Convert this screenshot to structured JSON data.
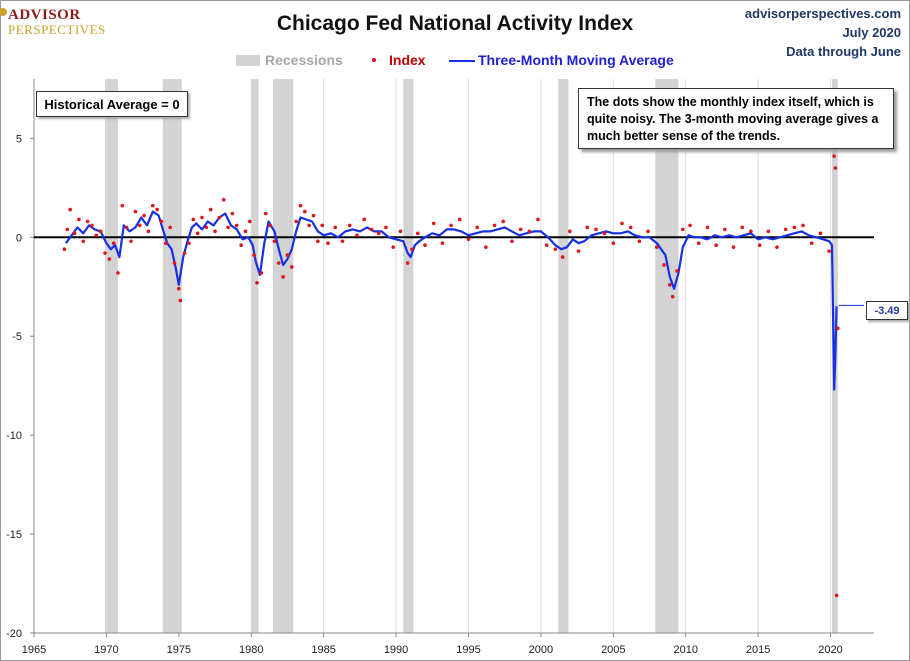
{
  "logo": {
    "line1": "ADVISOR",
    "line2": "PERSPECTIVES"
  },
  "header": {
    "title": "Chicago Fed National Activity Index",
    "site": "advisorperspectives.com",
    "date": "July 2020",
    "through": "Data through June"
  },
  "legend": {
    "recessions": "Recessions",
    "index": "Index",
    "ma": "Three-Month Moving Average"
  },
  "annotations": {
    "historical_average": "Historical Average = 0",
    "note": "The dots show the monthly  index itself, which is quite noisy. The 3-month moving average gives a much better sense of the trends.",
    "last_value": "-3.49"
  },
  "colors": {
    "index": "#e0141b",
    "ma": "#1630e6",
    "recession": "#d3d3d3",
    "zero": "#000000",
    "legend_recession_text": "#a6a6a6",
    "legend_index_text": "#c00000",
    "legend_ma_text": "#1f1fd6"
  },
  "chart_data": {
    "type": "line",
    "title": "Chicago Fed National Activity Index",
    "xlim": [
      1965,
      2023
    ],
    "ylim": [
      -20,
      8
    ],
    "xticks": [
      1965,
      1970,
      1975,
      1980,
      1985,
      1990,
      1995,
      2000,
      2005,
      2010,
      2015,
      2020
    ],
    "yticks": [
      5,
      0,
      -5,
      -10,
      -15,
      -20
    ],
    "grid": "vertical",
    "legend": "top",
    "recessions": [
      [
        1969.9,
        1970.8
      ],
      [
        1973.9,
        1975.2
      ],
      [
        1980.0,
        1980.5
      ],
      [
        1981.5,
        1982.9
      ],
      [
        1990.5,
        1991.2
      ],
      [
        2001.2,
        2001.9
      ],
      [
        2007.9,
        2009.5
      ],
      [
        2020.1,
        2020.5
      ]
    ],
    "series": [
      {
        "name": "Three-Month Moving Average",
        "style": "line",
        "x": [
          1967.2,
          1967.6,
          1968.0,
          1968.4,
          1968.8,
          1969.2,
          1969.6,
          1970.0,
          1970.3,
          1970.6,
          1970.9,
          1971.2,
          1971.6,
          1972.0,
          1972.4,
          1972.8,
          1973.2,
          1973.6,
          1973.9,
          1974.2,
          1974.5,
          1974.8,
          1975.0,
          1975.3,
          1975.6,
          1975.9,
          1976.2,
          1976.6,
          1977.0,
          1977.4,
          1977.8,
          1978.2,
          1978.6,
          1979.0,
          1979.4,
          1979.8,
          1980.1,
          1980.3,
          1980.6,
          1980.9,
          1981.2,
          1981.6,
          1981.9,
          1982.2,
          1982.5,
          1982.8,
          1983.1,
          1983.4,
          1983.8,
          1984.2,
          1984.6,
          1985.0,
          1985.5,
          1986.0,
          1986.5,
          1987.0,
          1987.5,
          1988.0,
          1988.5,
          1989.0,
          1989.5,
          1990.0,
          1990.5,
          1990.8,
          1991.0,
          1991.3,
          1991.6,
          1992.0,
          1992.5,
          1993.0,
          1993.5,
          1994.0,
          1994.5,
          1995.0,
          1995.5,
          1996.0,
          1996.5,
          1997.0,
          1997.5,
          1998.0,
          1998.5,
          1999.0,
          1999.5,
          2000.0,
          2000.5,
          2001.0,
          2001.4,
          2001.8,
          2002.2,
          2002.6,
          2003.0,
          2003.5,
          2004.0,
          2004.5,
          2005.0,
          2005.5,
          2006.0,
          2006.5,
          2007.0,
          2007.5,
          2008.0,
          2008.3,
          2008.6,
          2008.9,
          2009.2,
          2009.5,
          2009.8,
          2010.2,
          2010.6,
          2011.0,
          2011.5,
          2012.0,
          2012.5,
          2013.0,
          2013.5,
          2014.0,
          2014.5,
          2015.0,
          2015.5,
          2016.0,
          2016.5,
          2017.0,
          2017.5,
          2018.0,
          2018.5,
          2019.0,
          2019.5,
          2019.9,
          2020.1,
          2020.25,
          2020.33,
          2020.42
        ],
        "y": [
          -0.3,
          0.1,
          0.5,
          0.2,
          0.6,
          0.4,
          0.3,
          -0.3,
          -0.6,
          -0.4,
          -1.0,
          0.6,
          0.3,
          0.5,
          1.0,
          0.6,
          1.3,
          1.1,
          0.4,
          -0.3,
          -0.6,
          -1.6,
          -2.4,
          -1.0,
          -0.2,
          0.5,
          0.7,
          0.4,
          0.8,
          0.6,
          1.0,
          1.2,
          0.6,
          0.4,
          -0.1,
          0.0,
          -0.4,
          -1.2,
          -1.9,
          -0.3,
          0.8,
          0.3,
          -0.6,
          -1.4,
          -1.1,
          -0.6,
          0.3,
          1.0,
          0.9,
          0.8,
          0.3,
          0.1,
          0.2,
          0.0,
          0.3,
          0.4,
          0.3,
          0.5,
          0.3,
          0.3,
          0.0,
          -0.1,
          -0.2,
          -0.8,
          -1.0,
          -0.4,
          -0.2,
          0.0,
          0.2,
          0.1,
          0.4,
          0.4,
          0.3,
          0.1,
          0.2,
          0.3,
          0.3,
          0.4,
          0.5,
          0.3,
          0.1,
          0.2,
          0.3,
          0.3,
          0.0,
          -0.4,
          -0.6,
          -0.5,
          -0.1,
          -0.3,
          -0.2,
          0.1,
          0.2,
          0.3,
          0.2,
          0.2,
          0.3,
          0.1,
          0.0,
          0.0,
          -0.3,
          -0.6,
          -0.9,
          -2.0,
          -2.6,
          -1.8,
          -0.5,
          0.1,
          0.0,
          0.0,
          -0.1,
          0.1,
          0.0,
          0.1,
          0.0,
          0.1,
          0.2,
          -0.1,
          0.0,
          -0.1,
          0.0,
          0.1,
          0.2,
          0.3,
          0.1,
          0.0,
          -0.1,
          -0.2,
          -0.4,
          -7.7,
          -6.0,
          -3.49
        ]
      },
      {
        "name": "Index",
        "style": "dots",
        "x": [
          1967.1,
          1967.3,
          1967.5,
          1967.8,
          1968.1,
          1968.4,
          1968.7,
          1969.0,
          1969.3,
          1969.6,
          1969.9,
          1970.2,
          1970.5,
          1970.8,
          1971.1,
          1971.4,
          1971.7,
          1972.0,
          1972.3,
          1972.6,
          1972.9,
          1973.2,
          1973.5,
          1973.8,
          1974.1,
          1974.4,
          1974.7,
          1975.0,
          1975.1,
          1975.4,
          1975.7,
          1976.0,
          1976.3,
          1976.6,
          1976.9,
          1977.2,
          1977.5,
          1977.8,
          1978.1,
          1978.4,
          1978.7,
          1979.0,
          1979.3,
          1979.6,
          1979.9,
          1980.2,
          1980.4,
          1980.7,
          1981.0,
          1981.3,
          1981.6,
          1981.9,
          1982.2,
          1982.5,
          1982.8,
          1983.1,
          1983.4,
          1983.7,
          1984.0,
          1984.3,
          1984.6,
          1984.9,
          1985.3,
          1985.8,
          1986.3,
          1986.8,
          1987.3,
          1987.8,
          1988.3,
          1988.8,
          1989.3,
          1989.8,
          1990.3,
          1990.8,
          1991.1,
          1991.5,
          1992.0,
          1992.6,
          1993.2,
          1993.8,
          1994.4,
          1995.0,
          1995.6,
          1996.2,
          1996.8,
          1997.4,
          1998.0,
          1998.6,
          1999.2,
          1999.8,
          2000.4,
          2001.0,
          2001.5,
          2002.0,
          2002.6,
          2003.2,
          2003.8,
          2004.4,
          2005.0,
          2005.6,
          2006.2,
          2006.8,
          2007.4,
          2008.0,
          2008.5,
          2008.9,
          2009.1,
          2009.4,
          2009.8,
          2010.3,
          2010.9,
          2011.5,
          2012.1,
          2012.7,
          2013.3,
          2013.9,
          2014.5,
          2015.1,
          2015.7,
          2016.3,
          2016.9,
          2017.5,
          2018.1,
          2018.7,
          2019.3,
          2019.9,
          2020.25,
          2020.33,
          2020.42,
          2020.5
        ],
        "y": [
          -0.6,
          0.4,
          1.4,
          0.2,
          0.9,
          -0.2,
          0.8,
          0.6,
          0.1,
          0.3,
          -0.8,
          -1.1,
          -0.3,
          -1.8,
          1.6,
          0.5,
          -0.2,
          1.3,
          0.6,
          1.1,
          0.3,
          1.6,
          1.4,
          0.8,
          -0.3,
          0.5,
          -1.3,
          -2.6,
          -3.2,
          -0.8,
          -0.3,
          0.9,
          0.2,
          1.0,
          0.5,
          1.4,
          0.3,
          1.0,
          1.9,
          0.5,
          1.2,
          0.6,
          -0.4,
          0.3,
          0.8,
          -0.9,
          -2.3,
          -1.8,
          1.2,
          0.6,
          -0.2,
          -1.3,
          -2.0,
          -0.9,
          -1.5,
          0.8,
          1.6,
          1.3,
          0.6,
          1.1,
          -0.2,
          0.6,
          -0.3,
          0.5,
          -0.2,
          0.6,
          0.1,
          0.9,
          0.4,
          0.2,
          0.5,
          -0.5,
          0.3,
          -1.3,
          -0.6,
          0.2,
          -0.4,
          0.7,
          -0.3,
          0.6,
          0.9,
          -0.1,
          0.5,
          -0.5,
          0.6,
          0.8,
          -0.2,
          0.4,
          0.3,
          0.9,
          -0.4,
          -0.6,
          -1.0,
          0.3,
          -0.7,
          0.5,
          0.4,
          0.2,
          -0.3,
          0.7,
          0.5,
          -0.2,
          0.3,
          -0.5,
          -1.4,
          -2.4,
          -3.0,
          -1.7,
          0.4,
          0.6,
          -0.3,
          0.5,
          -0.4,
          0.4,
          -0.5,
          0.5,
          0.3,
          -0.4,
          0.3,
          -0.5,
          0.4,
          0.5,
          0.6,
          -0.3,
          0.2,
          -0.7,
          4.1,
          3.5,
          -18.1,
          -4.6
        ]
      }
    ]
  }
}
